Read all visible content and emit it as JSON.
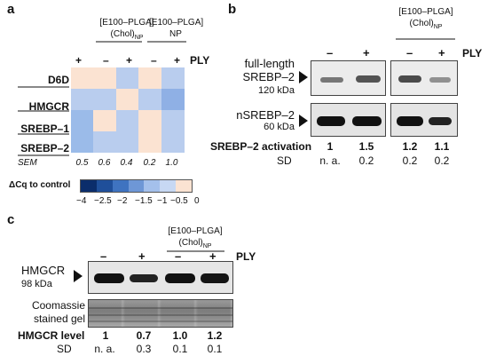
{
  "panel_a": {
    "letter": "a",
    "header_np_top": "[E100–PLGA]",
    "header_np_sub": "(Chol)",
    "header_np_subscript": "NP",
    "header_np2_top": "[E100–PLGA]",
    "header_np2_sub": "NP",
    "ply_label": "PLY",
    "signs": [
      "+",
      "–",
      "+",
      "–",
      "+"
    ],
    "rows": [
      "D6D",
      "HMGCR",
      "SREBP–1",
      "SREBP–2"
    ],
    "sem_label": "SEM",
    "sem_values": [
      "0.5",
      "0.6",
      "0.4",
      "0.2",
      "1.0"
    ],
    "heatmap_colors": [
      [
        "#fbe3d2",
        "#fbe3d2",
        "#b9cdee",
        "#fbe3d2",
        "#b9cdee"
      ],
      [
        "#b9cdee",
        "#b9cdee",
        "#fbe3d2",
        "#b9cdee",
        "#8fb0e5"
      ],
      [
        "#9bbbe9",
        "#fbe3d2",
        "#b9cdee",
        "#fbe3d2",
        "#b9cdee"
      ],
      [
        "#9bbbe9",
        "#b9cdee",
        "#b9cdee",
        "#fbe3d2",
        "#b9cdee"
      ]
    ],
    "legend_title": "ΔCq to control",
    "legend_ticks": [
      "−4",
      "−2.5",
      "−2",
      "−1.5",
      "−1",
      "−0.5",
      "0"
    ],
    "legend_colors": [
      "#0b2d6b",
      "#1f4f9a",
      "#3f73c0",
      "#6e97d6",
      "#a4c0eb",
      "#c7d8f3",
      "#fbe3d2"
    ]
  },
  "panel_b": {
    "letter": "b",
    "header_top": "[E100–PLGA]",
    "header_sub": "(Chol)",
    "header_subscript": "NP",
    "ply_label": "PLY",
    "signs": [
      "–",
      "+",
      "–",
      "+"
    ],
    "band1_label_l1": "full-length",
    "band1_label_l2": "SREBP–2",
    "band1_label_l3": "120 kDa",
    "band2_label_l1": "nSREBP–2",
    "band2_label_l2": "60 kDa",
    "activation_label": "SREBP–2 activation",
    "activation_values": [
      "1",
      "1.5",
      "1.2",
      "1.1"
    ],
    "sd_label": "SD",
    "sd_values": [
      "n. a.",
      "0.2",
      "0.2",
      "0.2"
    ]
  },
  "panel_c": {
    "letter": "c",
    "header_top": "[E100–PLGA]",
    "header_sub": "(Chol)",
    "header_subscript": "NP",
    "ply_label": "PLY",
    "signs": [
      "–",
      "+",
      "–",
      "+"
    ],
    "band_label_l1": "HMGCR",
    "band_label_l2": "98 kDa",
    "gel_label_l1": "Coomassie",
    "gel_label_l2": "stained gel",
    "level_label": "HMGCR level",
    "level_values": [
      "1",
      "0.7",
      "1.0",
      "1.2"
    ],
    "sd_label": "SD",
    "sd_values": [
      "n. a.",
      "0.3",
      "0.1",
      "0.1"
    ]
  }
}
